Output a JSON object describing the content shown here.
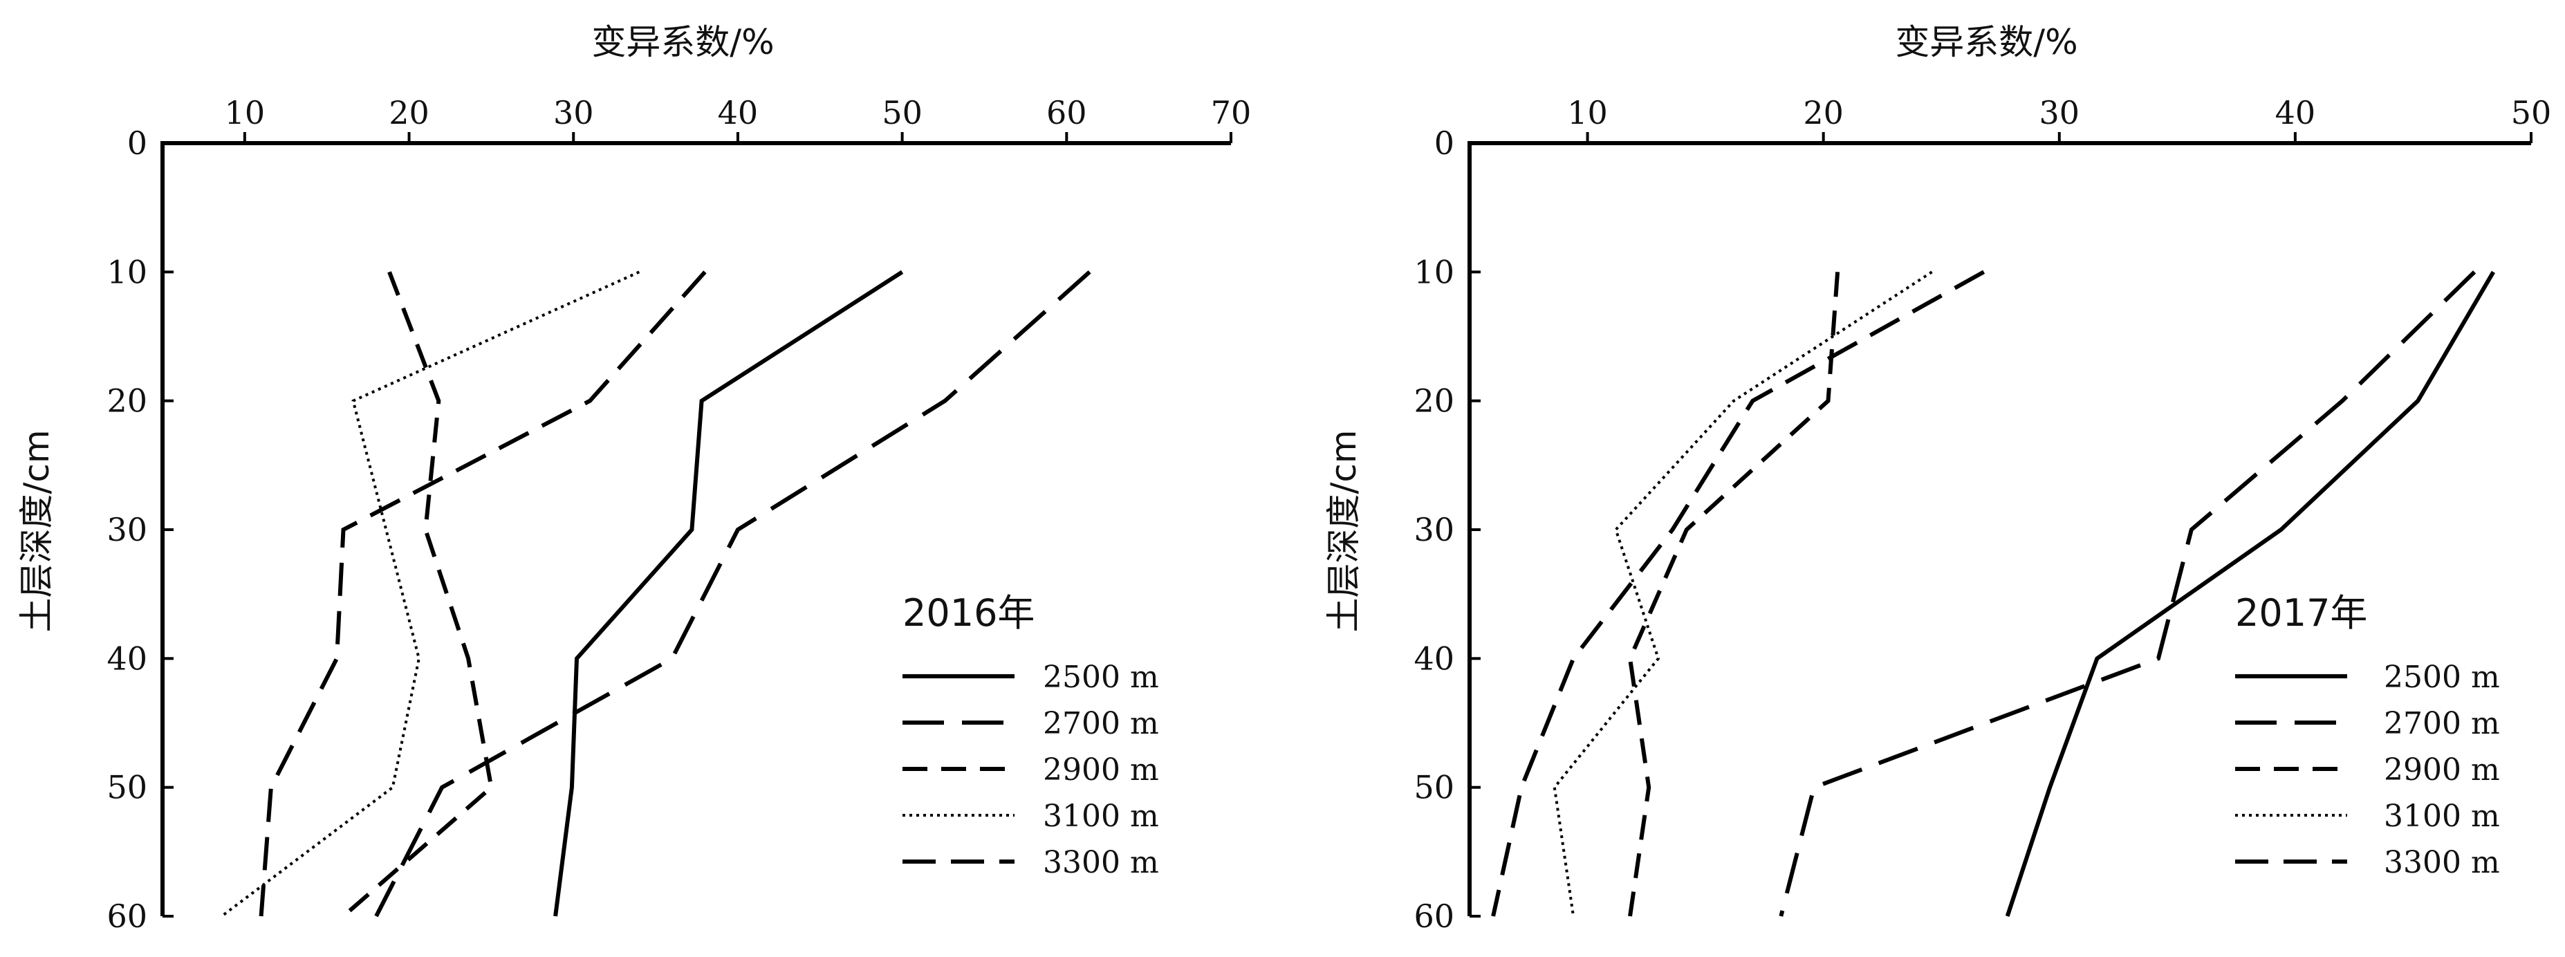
{
  "chart_data": [
    {
      "type": "line",
      "title": "",
      "xlabel": "变异系数/%",
      "ylabel": "土层深度/cm",
      "x_axis_position": "top",
      "y_axis_inverted": true,
      "xlim": [
        5,
        70
      ],
      "ylim": [
        0,
        60
      ],
      "xticks": [
        10,
        20,
        30,
        40,
        50,
        60,
        70
      ],
      "yticks": [
        0,
        10,
        20,
        30,
        40,
        50,
        60
      ],
      "grid": false,
      "legend_title": "2016年",
      "legend_position": "bottom-right",
      "y": [
        10,
        20,
        30,
        40,
        50,
        60
      ],
      "series": [
        {
          "name": "2500 m",
          "style": "solid",
          "x": [
            50.0,
            37.8,
            37.2,
            30.2,
            29.9,
            28.9
          ]
        },
        {
          "name": "2700 m",
          "style": "long-dash",
          "x": [
            61.4,
            52.6,
            40.0,
            36.0,
            22.0,
            18.0
          ]
        },
        {
          "name": "2900 m",
          "style": "dash",
          "x": [
            18.8,
            21.8,
            21.0,
            23.6,
            25.0,
            16.0
          ]
        },
        {
          "name": "3100 m",
          "style": "dotted",
          "x": [
            34.0,
            16.6,
            18.6,
            20.6,
            19.0,
            8.6
          ]
        },
        {
          "name": "3300 m",
          "style": "medium-dash",
          "x": [
            38.0,
            31.0,
            16.0,
            15.6,
            11.6,
            11.0
          ]
        }
      ]
    },
    {
      "type": "line",
      "title": "",
      "xlabel": "变异系数/%",
      "ylabel": "土层深度/cm",
      "x_axis_position": "top",
      "y_axis_inverted": true,
      "xlim": [
        5,
        50
      ],
      "ylim": [
        0,
        60
      ],
      "xticks": [
        10,
        20,
        30,
        40,
        50
      ],
      "yticks": [
        0,
        10,
        20,
        30,
        40,
        50,
        60
      ],
      "grid": false,
      "legend_title": "2017年",
      "legend_position": "bottom-right",
      "y": [
        10,
        20,
        30,
        40,
        50,
        60
      ],
      "series": [
        {
          "name": "2500 m",
          "style": "solid",
          "x": [
            48.4,
            45.2,
            39.4,
            31.6,
            29.6,
            27.8
          ]
        },
        {
          "name": "2700 m",
          "style": "long-dash",
          "x": [
            47.6,
            42.0,
            35.6,
            34.2,
            19.6,
            18.2
          ]
        },
        {
          "name": "2900 m",
          "style": "dash",
          "x": [
            20.6,
            20.2,
            14.2,
            11.8,
            12.6,
            11.8
          ]
        },
        {
          "name": "3100 m",
          "style": "dotted",
          "x": [
            24.6,
            16.2,
            11.2,
            13.0,
            8.6,
            9.4
          ]
        },
        {
          "name": "3300 m",
          "style": "medium-dash",
          "x": [
            26.8,
            17.0,
            13.6,
            9.4,
            7.2,
            6.0
          ]
        }
      ]
    }
  ]
}
